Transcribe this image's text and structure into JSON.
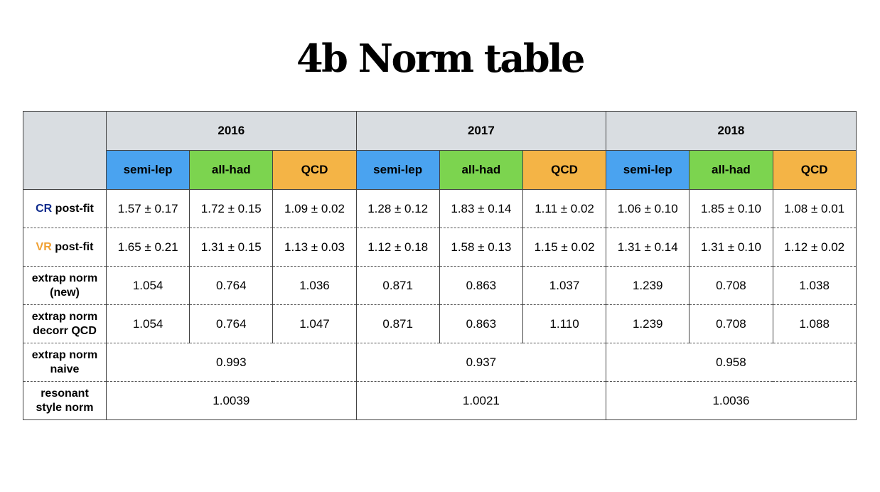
{
  "title": "4b Norm table",
  "years": [
    "2016",
    "2017",
    "2018"
  ],
  "subcolumns": [
    "semi-lep",
    "all-had",
    "QCD"
  ],
  "rows": {
    "cr": {
      "prefix": "CR",
      "suffix": " post-fit",
      "values": [
        "1.57 ± 0.17",
        "1.72 ± 0.15",
        "1.09 ± 0.02",
        "1.28 ± 0.12",
        "1.83 ± 0.14",
        "1.11 ± 0.02",
        "1.06 ± 0.10",
        "1.85 ± 0.10",
        "1.08 ± 0.01"
      ]
    },
    "vr": {
      "prefix": "VR",
      "suffix": " post-fit",
      "values": [
        "1.65 ± 0.21",
        "1.31 ± 0.15",
        "1.13 ± 0.03",
        "1.12 ± 0.18",
        "1.58 ± 0.13",
        "1.15 ± 0.02",
        "1.31 ± 0.14",
        "1.31 ± 0.10",
        "1.12 ± 0.02"
      ]
    },
    "extrap_new": {
      "label_line1": "extrap norm",
      "label_line2": "(new)",
      "values": [
        "1.054",
        "0.764",
        "1.036",
        "0.871",
        "0.863",
        "1.037",
        "1.239",
        "0.708",
        "1.038"
      ]
    },
    "extrap_decorr": {
      "label_line1": "extrap norm",
      "label_line2": "decorr QCD",
      "values": [
        "1.054",
        "0.764",
        "1.047",
        "0.871",
        "0.863",
        "1.110",
        "1.239",
        "0.708",
        "1.088"
      ]
    },
    "extrap_naive": {
      "label_line1": "extrap norm",
      "label_line2": "naive",
      "values": [
        "0.993",
        "0.937",
        "0.958"
      ]
    },
    "resonant": {
      "label_line1": "resonant",
      "label_line2": "style norm",
      "values": [
        "1.0039",
        "1.0021",
        "1.0036"
      ]
    }
  },
  "colors": {
    "semi_lep": "#4aa3f0",
    "all_had": "#7cd44f",
    "qcd": "#f4b446",
    "year_header": "#d9dde1",
    "cr_text": "#0d2a8c",
    "vr_text": "#f0a032"
  }
}
